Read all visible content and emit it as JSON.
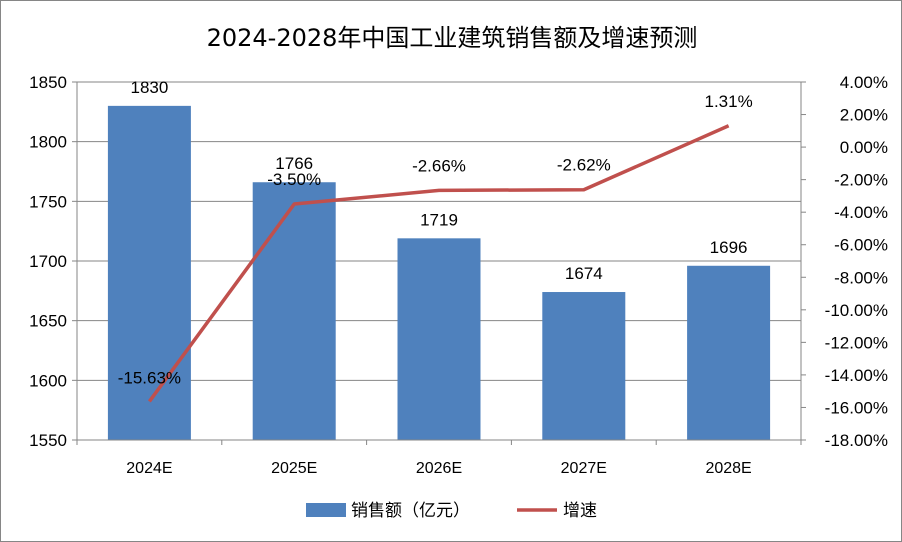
{
  "chart_data": {
    "type": "bar",
    "title": "2024-2028年中国工业建筑销售额及增速预测",
    "categories": [
      "2024E",
      "2025E",
      "2026E",
      "2027E",
      "2028E"
    ],
    "series": [
      {
        "name": "销售额（亿元）",
        "type": "bar",
        "axis": "left",
        "color": "#4F81BD",
        "values": [
          1830,
          1766,
          1719,
          1674,
          1696
        ],
        "labels": [
          "1830",
          "1766",
          "1719",
          "1674",
          "1696"
        ]
      },
      {
        "name": "增速",
        "type": "line",
        "axis": "right",
        "color": "#C0504D",
        "values": [
          -15.63,
          -3.5,
          -2.66,
          -2.62,
          1.31
        ],
        "labels": [
          "-15.63%",
          "-3.50%",
          "-2.66%",
          "-2.62%",
          "1.31%"
        ]
      }
    ],
    "y_left": {
      "min": 1550,
      "max": 1850,
      "ticks": [
        "1550",
        "1600",
        "1650",
        "1700",
        "1750",
        "1800",
        "1850"
      ]
    },
    "y_right": {
      "min": -18,
      "max": 4,
      "ticks": [
        "-18.00%",
        "-16.00%",
        "-14.00%",
        "-12.00%",
        "-10.00%",
        "-8.00%",
        "-6.00%",
        "-4.00%",
        "-2.00%",
        "0.00%",
        "2.00%",
        "4.00%"
      ]
    },
    "grid": true,
    "legend": "bottom"
  }
}
